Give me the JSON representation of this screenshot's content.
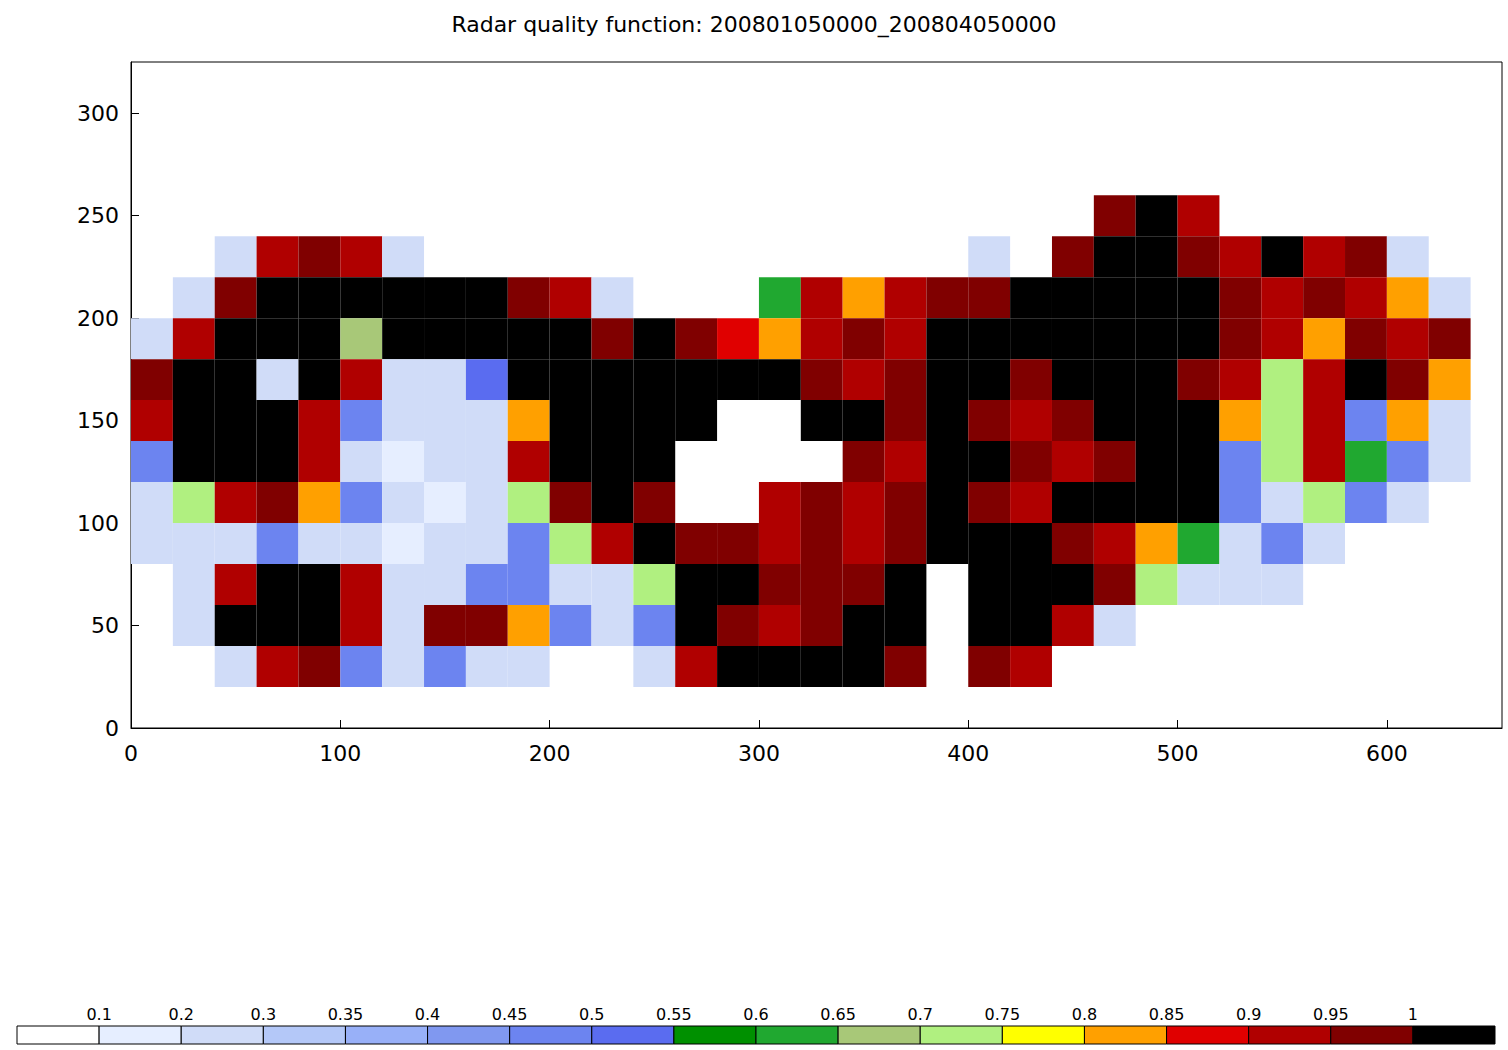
{
  "chart_data": {
    "type": "heatmap",
    "title": "Radar quality function: 200801050000_200804050000",
    "xlim": [
      0,
      655
    ],
    "ylim": [
      0,
      325
    ],
    "xticks": [
      0,
      100,
      200,
      300,
      400,
      500,
      600
    ],
    "yticks": [
      0,
      50,
      100,
      150,
      200,
      250,
      300
    ],
    "cells": {
      "x": [
        0,
        20,
        40,
        60,
        80,
        100,
        120,
        140,
        160,
        180,
        200,
        220,
        240,
        260,
        280,
        300,
        320,
        340,
        360,
        380,
        400,
        420,
        440,
        460,
        480,
        500,
        520,
        540,
        560,
        580,
        600,
        620,
        640
      ],
      "y": [
        240,
        220,
        200,
        180,
        160,
        140,
        120,
        100,
        80,
        60,
        40,
        20
      ],
      "size": 20,
      "values": [
        [
          null,
          null,
          null,
          null,
          null,
          null,
          null,
          null,
          null,
          null,
          null,
          null,
          null,
          null,
          null,
          null,
          null,
          null,
          null,
          null,
          null,
          null,
          null,
          0.97,
          1,
          0.9,
          null,
          null,
          null,
          null,
          null,
          null,
          null
        ],
        [
          null,
          null,
          0.25,
          0.9,
          0.97,
          0.9,
          0.25,
          null,
          null,
          null,
          null,
          null,
          null,
          null,
          null,
          null,
          null,
          null,
          null,
          null,
          0.2,
          null,
          0.97,
          1,
          1,
          0.97,
          0.9,
          1,
          0.9,
          0.97,
          0.25,
          null,
          null
        ],
        [
          null,
          0.25,
          0.97,
          1,
          1,
          1,
          1,
          1,
          1,
          0.97,
          0.9,
          0.25,
          null,
          null,
          null,
          0.6,
          0.9,
          0.8,
          0.9,
          0.97,
          0.97,
          1,
          1,
          1,
          1,
          1,
          0.97,
          0.9,
          0.97,
          0.9,
          0.8,
          0.25,
          null
        ],
        [
          0.2,
          0.9,
          1,
          1,
          1,
          0.65,
          1,
          1,
          1,
          1,
          1,
          0.97,
          1,
          0.97,
          0.85,
          0.8,
          0.9,
          0.97,
          0.9,
          1,
          1,
          1,
          1,
          1,
          1,
          1,
          0.97,
          0.9,
          0.8,
          0.97,
          0.9,
          0.97,
          null
        ],
        [
          0.97,
          1,
          1,
          0.25,
          1,
          0.9,
          0.25,
          0.25,
          0.5,
          1,
          1,
          1,
          1,
          1,
          1,
          1,
          0.97,
          0.9,
          0.97,
          1,
          1,
          0.97,
          1,
          1,
          1,
          0.97,
          0.9,
          0.7,
          0.9,
          1,
          0.97,
          0.8,
          null
        ],
        [
          0.9,
          1,
          1,
          1,
          0.9,
          0.45,
          0.2,
          0.25,
          0.2,
          0.8,
          1,
          1,
          1,
          1,
          null,
          null,
          1,
          1,
          0.97,
          1,
          0.97,
          0.9,
          0.97,
          1,
          1,
          1,
          0.8,
          0.7,
          0.9,
          0.45,
          0.8,
          0.25,
          null
        ],
        [
          0.45,
          1,
          1,
          1,
          0.9,
          0.25,
          0.15,
          0.2,
          0.25,
          0.9,
          1,
          1,
          1,
          null,
          null,
          null,
          null,
          0.97,
          0.9,
          1,
          1,
          0.97,
          0.9,
          0.97,
          1,
          1,
          0.45,
          0.7,
          0.9,
          0.6,
          0.45,
          0.2,
          null
        ],
        [
          0.25,
          0.7,
          0.9,
          0.97,
          0.8,
          0.45,
          0.2,
          0.15,
          0.25,
          0.7,
          0.97,
          1,
          0.97,
          null,
          null,
          0.9,
          0.97,
          0.9,
          0.97,
          1,
          0.97,
          0.9,
          1,
          1,
          1,
          1,
          0.45,
          0.25,
          0.7,
          0.45,
          0.25,
          null,
          null
        ],
        [
          0.2,
          0.25,
          0.25,
          0.45,
          0.25,
          0.2,
          0.15,
          0.2,
          0.25,
          0.45,
          0.7,
          0.9,
          1,
          0.97,
          0.97,
          0.9,
          0.97,
          0.9,
          0.97,
          1,
          1,
          1,
          0.97,
          0.9,
          0.8,
          0.6,
          0.25,
          0.45,
          0.2,
          null,
          null,
          null,
          null
        ],
        [
          null,
          0.25,
          0.9,
          1,
          1,
          0.9,
          0.2,
          0.25,
          0.45,
          0.45,
          0.25,
          0.2,
          0.7,
          1,
          1,
          0.97,
          0.97,
          0.97,
          1,
          null,
          1,
          1,
          1,
          0.97,
          0.7,
          0.25,
          0.25,
          0.2,
          null,
          null,
          null,
          null,
          null
        ],
        [
          null,
          0.25,
          1,
          1,
          1,
          0.9,
          0.25,
          0.97,
          0.97,
          0.8,
          0.45,
          0.2,
          0.45,
          1,
          0.97,
          0.9,
          0.97,
          1,
          1,
          null,
          1,
          1,
          0.9,
          0.25,
          null,
          null,
          null,
          null,
          null,
          null,
          null,
          null,
          null
        ],
        [
          null,
          null,
          0.25,
          0.9,
          0.97,
          0.45,
          0.25,
          0.45,
          0.25,
          0.2,
          null,
          null,
          0.25,
          0.9,
          1,
          1,
          1,
          1,
          0.97,
          null,
          0.97,
          0.9,
          null,
          null,
          null,
          null,
          null,
          null,
          null,
          null,
          null,
          null,
          null
        ]
      ]
    },
    "colorbar": {
      "ticks": [
        0.1,
        0.2,
        0.3,
        0.35,
        0.4,
        0.45,
        0.5,
        0.55,
        0.6,
        0.65,
        0.7,
        0.75,
        0.8,
        0.85,
        0.9,
        0.95,
        1
      ],
      "colors": [
        "#ffffff",
        "#e6eeff",
        "#d0dcf8",
        "#b4c8f8",
        "#98b0f8",
        "#8098f0",
        "#6c84f0",
        "#5a6cf0",
        "#009000",
        "#20a830",
        "#a8c878",
        "#b0f080",
        "#ffff00",
        "#ffa000",
        "#e00000",
        "#b00000",
        "#800000",
        "#000000"
      ]
    }
  }
}
